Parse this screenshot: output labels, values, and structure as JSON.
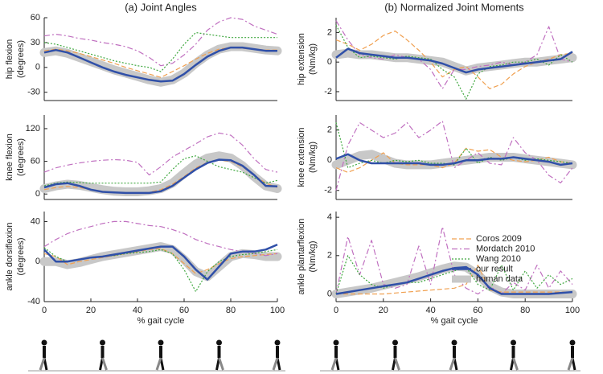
{
  "chart_data": [
    {
      "type": "line",
      "title": "(a) Joint Angles",
      "y_label": "hip flexion",
      "y_unit": "(degrees)",
      "x": [
        0,
        5,
        10,
        15,
        20,
        25,
        30,
        35,
        40,
        45,
        50,
        55,
        60,
        65,
        70,
        75,
        80,
        85,
        90,
        95,
        100
      ],
      "xlim": [
        0,
        100
      ],
      "ylim": [
        -40,
        60
      ],
      "yticks": [
        -30,
        0,
        30,
        60
      ],
      "series": [
        {
          "color": "#f0a050",
          "style": "dashed",
          "values": [
            20,
            22,
            20,
            17,
            13,
            9,
            5,
            0,
            -4,
            -8,
            -12,
            -5,
            2,
            10,
            17,
            22,
            24,
            23,
            22,
            21,
            21
          ]
        },
        {
          "color": "#c070c0",
          "style": "dashdot",
          "values": [
            38,
            40,
            38,
            35,
            33,
            30,
            28,
            25,
            20,
            12,
            2,
            5,
            15,
            28,
            45,
            55,
            60,
            58,
            50,
            45,
            40
          ]
        },
        {
          "color": "#40a840",
          "style": "dotted",
          "values": [
            30,
            28,
            24,
            20,
            16,
            12,
            8,
            5,
            2,
            0,
            -5,
            10,
            28,
            42,
            40,
            38,
            36,
            36,
            36,
            36,
            36
          ]
        },
        {
          "color": "#3050a8",
          "style": "solid",
          "values": [
            18,
            21,
            18,
            12,
            6,
            0,
            -5,
            -9,
            -12,
            -15,
            -17,
            -16,
            -8,
            3,
            13,
            20,
            24,
            24,
            22,
            20,
            20
          ]
        },
        {
          "color": "#c8c8c8",
          "style": "band",
          "values": [
            18,
            20,
            17,
            12,
            7,
            2,
            -3,
            -7,
            -11,
            -15,
            -18,
            -15,
            -7,
            5,
            15,
            22,
            25,
            25,
            23,
            21,
            20
          ]
        }
      ]
    },
    {
      "type": "line",
      "y_label": "knee flexion",
      "y_unit": "(degrees)",
      "x": [
        0,
        5,
        10,
        15,
        20,
        25,
        30,
        35,
        40,
        45,
        50,
        55,
        60,
        65,
        70,
        75,
        80,
        85,
        90,
        95,
        100
      ],
      "xlim": [
        0,
        100
      ],
      "ylim": [
        -10,
        145
      ],
      "yticks": [
        0,
        60,
        120
      ],
      "series": [
        {
          "color": "#f0a050",
          "style": "dashed",
          "values": [
            8,
            12,
            14,
            12,
            8,
            5,
            3,
            2,
            2,
            3,
            8,
            18,
            32,
            48,
            58,
            62,
            60,
            50,
            35,
            20,
            12
          ]
        },
        {
          "color": "#c070c0",
          "style": "dashdot",
          "values": [
            40,
            48,
            53,
            57,
            60,
            62,
            63,
            62,
            58,
            35,
            50,
            68,
            80,
            92,
            105,
            112,
            108,
            90,
            65,
            45,
            40
          ]
        },
        {
          "color": "#40a840",
          "style": "dotted",
          "values": [
            15,
            20,
            22,
            21,
            20,
            20,
            20,
            20,
            20,
            20,
            22,
            45,
            65,
            70,
            60,
            50,
            45,
            40,
            30,
            20,
            25
          ]
        },
        {
          "color": "#3050a8",
          "style": "solid",
          "values": [
            12,
            18,
            20,
            15,
            8,
            4,
            3,
            2,
            2,
            2,
            5,
            15,
            30,
            45,
            57,
            63,
            62,
            52,
            35,
            15,
            14
          ]
        },
        {
          "color": "#c8c8c8",
          "style": "band",
          "values": [
            10,
            15,
            18,
            16,
            12,
            8,
            5,
            4,
            4,
            6,
            10,
            20,
            38,
            55,
            66,
            70,
            66,
            52,
            32,
            15,
            10
          ]
        }
      ]
    },
    {
      "type": "line",
      "y_label": "ankle dorsiflexion",
      "y_unit": "(degrees)",
      "x_label": "% gait cycle",
      "x": [
        0,
        5,
        10,
        15,
        20,
        25,
        30,
        35,
        40,
        45,
        50,
        55,
        60,
        65,
        70,
        75,
        80,
        85,
        90,
        95,
        100
      ],
      "xlim": [
        0,
        100
      ],
      "xticks": [
        0,
        20,
        40,
        60,
        80,
        100
      ],
      "ylim": [
        -40,
        50
      ],
      "yticks": [
        -40,
        0,
        40
      ],
      "series": [
        {
          "color": "#f0a050",
          "style": "dashed",
          "values": [
            8,
            5,
            -3,
            0,
            2,
            4,
            6,
            8,
            10,
            12,
            13,
            8,
            -2,
            -12,
            -8,
            -2,
            3,
            5,
            6,
            7,
            8
          ]
        },
        {
          "color": "#c070c0",
          "style": "dashdot",
          "values": [
            15,
            22,
            28,
            32,
            35,
            38,
            40,
            40,
            38,
            36,
            35,
            32,
            28,
            22,
            18,
            15,
            12,
            10,
            8,
            6,
            8
          ]
        },
        {
          "color": "#40a840",
          "style": "dotted",
          "values": [
            14,
            5,
            0,
            2,
            4,
            5,
            6,
            8,
            9,
            10,
            12,
            8,
            -8,
            -30,
            -10,
            0,
            5,
            7,
            8,
            10,
            12
          ]
        },
        {
          "color": "#3050a8",
          "style": "solid",
          "values": [
            12,
            0,
            0,
            2,
            4,
            5,
            7,
            9,
            11,
            13,
            15,
            15,
            5,
            -8,
            -18,
            -5,
            8,
            10,
            10,
            12,
            17
          ]
        },
        {
          "color": "#c8c8c8",
          "style": "band",
          "values": [
            0,
            0,
            -3,
            -1,
            2,
            5,
            7,
            9,
            11,
            13,
            15,
            12,
            2,
            -10,
            -15,
            -5,
            5,
            8,
            7,
            5,
            5
          ]
        }
      ]
    },
    {
      "type": "line",
      "title": "(b) Normalized Joint Moments",
      "y_label": "hip extension",
      "y_unit": "(Nm/kg)",
      "x": [
        0,
        5,
        10,
        15,
        20,
        25,
        30,
        35,
        40,
        45,
        50,
        55,
        60,
        65,
        70,
        75,
        80,
        85,
        90,
        95,
        100
      ],
      "xlim": [
        0,
        100
      ],
      "ylim": [
        -2.6,
        3
      ],
      "yticks": [
        -2,
        0,
        2
      ],
      "series": [
        {
          "color": "#f0a050",
          "style": "dashed",
          "values": [
            1.5,
            1.2,
            0.8,
            1.2,
            1.8,
            2.1,
            1.5,
            0.8,
            0,
            -1,
            -0.5,
            -0.3,
            -1,
            -1.8,
            -1.5,
            -0.8,
            -0.3,
            0,
            0.2,
            0.5,
            0.6
          ]
        },
        {
          "color": "#c070c0",
          "style": "dashdot",
          "values": [
            2.8,
            1.5,
            0.5,
            0.3,
            0.2,
            0.5,
            0.3,
            0.2,
            -0.5,
            -1.8,
            -0.5,
            -0.5,
            -0.3,
            -0.2,
            0,
            -0.2,
            0,
            0.5,
            2.4,
            0.2,
            0
          ]
        },
        {
          "color": "#40a840",
          "style": "dotted",
          "values": [
            2.5,
            1,
            0.3,
            0.4,
            0.3,
            0.2,
            0.4,
            0.3,
            0.2,
            -0.5,
            -1,
            -2.5,
            -0.8,
            -0.3,
            -0.2,
            0,
            0,
            0.2,
            -0.2,
            0.5,
            0
          ]
        },
        {
          "color": "#3050a8",
          "style": "solid",
          "values": [
            0.3,
            0.9,
            0.6,
            0.5,
            0.4,
            0.3,
            0.3,
            0.2,
            0.1,
            -0.1,
            -0.4,
            -0.7,
            -0.5,
            -0.4,
            -0.3,
            -0.2,
            -0.1,
            0,
            0.1,
            0.2,
            0.7
          ]
        },
        {
          "color": "#c8c8c8",
          "style": "band",
          "values": [
            0.5,
            0.6,
            0.5,
            0.5,
            0.4,
            0.3,
            0.3,
            0.2,
            0.1,
            0,
            -0.3,
            -0.6,
            -0.4,
            -0.3,
            -0.2,
            -0.1,
            0,
            0,
            0.1,
            0.2,
            0.3
          ]
        }
      ]
    },
    {
      "type": "line",
      "y_label": "knee extension",
      "y_unit": "(Nm/kg)",
      "x": [
        0,
        5,
        10,
        15,
        20,
        25,
        30,
        35,
        40,
        45,
        50,
        55,
        60,
        65,
        70,
        75,
        80,
        85,
        90,
        95,
        100
      ],
      "xlim": [
        0,
        100
      ],
      "ylim": [
        -2.6,
        3
      ],
      "yticks": [
        -2,
        0,
        2
      ],
      "series": [
        {
          "color": "#f0a050",
          "style": "dashed",
          "values": [
            -0.5,
            -0.8,
            -0.5,
            0,
            0.5,
            -0.2,
            -0.3,
            -0.3,
            -0.3,
            -0.5,
            -0.2,
            0.8,
            0.6,
            0.7,
            0.2,
            0,
            -0.1,
            0,
            0.2,
            -0.1,
            -0.2
          ]
        },
        {
          "color": "#c070c0",
          "style": "dashdot",
          "values": [
            -2,
            1,
            2.5,
            2,
            1.5,
            1.8,
            2.5,
            1.5,
            2,
            2.6,
            -0.5,
            0,
            0.5,
            -0.2,
            -0.3,
            1.5,
            0.5,
            0,
            -1,
            -1.5,
            -0.5
          ]
        },
        {
          "color": "#40a840",
          "style": "dotted",
          "values": [
            2.5,
            -0.5,
            -0.2,
            0,
            -0.2,
            0,
            -0.1,
            0,
            -0.2,
            -0.2,
            -0.3,
            0.8,
            -0.2,
            0.2,
            0,
            0.2,
            0,
            0.1,
            0,
            -0.1,
            -0.2
          ]
        },
        {
          "color": "#3050a8",
          "style": "solid",
          "values": [
            0.1,
            0.4,
            0,
            -0.2,
            -0.2,
            -0.2,
            -0.2,
            -0.2,
            -0.3,
            -0.3,
            -0.2,
            0,
            0,
            0.1,
            0.1,
            0.2,
            0.1,
            0,
            -0.1,
            -0.3,
            -0.2
          ]
        },
        {
          "color": "#c8c8c8",
          "style": "band",
          "values": [
            -0.3,
            0,
            0.3,
            0.4,
            0.1,
            -0.2,
            -0.3,
            -0.3,
            -0.3,
            -0.2,
            -0.1,
            0,
            0.1,
            0.2,
            0.2,
            0.2,
            0.1,
            0,
            -0.1,
            -0.2,
            -0.3
          ]
        }
      ]
    },
    {
      "type": "line",
      "y_label": "ankle plantarflexion",
      "y_unit": "(Nm/kg)",
      "x_label": "% gait cycle",
      "x": [
        0,
        5,
        10,
        15,
        20,
        25,
        30,
        35,
        40,
        45,
        50,
        55,
        60,
        65,
        70,
        75,
        80,
        85,
        90,
        95,
        100
      ],
      "xlim": [
        0,
        100
      ],
      "xticks": [
        0,
        20,
        40,
        60,
        80,
        100
      ],
      "ylim": [
        -0.4,
        4.3
      ],
      "yticks": [
        0,
        2,
        4
      ],
      "legend": "upper right",
      "series": [
        {
          "name": "Coros 2009",
          "color": "#f0a050",
          "style": "dashed",
          "values": [
            0,
            0,
            0,
            0,
            0,
            0.05,
            0.1,
            0.15,
            0.2,
            0.25,
            0.3,
            0.5,
            1.5,
            0.2,
            0.1,
            0.1,
            0.1,
            0.1,
            0.1,
            0.1,
            0.1
          ]
        },
        {
          "name": "Mordatch 2010",
          "color": "#c070c0",
          "style": "dashdot",
          "values": [
            0,
            3,
            1,
            2.8,
            0.5,
            0.3,
            0.5,
            2.5,
            0.5,
            3.5,
            1,
            0.3,
            0,
            0.4,
            0,
            0.6,
            0.2,
            1.5,
            0.3,
            1.2,
            0.5
          ]
        },
        {
          "name": "Wang 2010",
          "color": "#40a840",
          "style": "dotted",
          "values": [
            0,
            2,
            1,
            0.5,
            0.3,
            0.5,
            0.6,
            0.6,
            0.8,
            1,
            1.2,
            1.4,
            0.5,
            0.2,
            1.5,
            0.2,
            1.2,
            0.3,
            1,
            0.5,
            0.8
          ]
        },
        {
          "name": "our result",
          "color": "#3050a8",
          "style": "solid",
          "values": [
            0,
            0.1,
            0.2,
            0.3,
            0.4,
            0.5,
            0.6,
            0.8,
            1,
            1.2,
            1.35,
            1.4,
            1,
            0.3,
            0,
            0,
            0,
            0,
            0,
            0.05,
            0.1
          ]
        },
        {
          "name": "human data",
          "color": "#c8c8c8",
          "style": "band",
          "values": [
            0,
            0.1,
            0.2,
            0.3,
            0.45,
            0.6,
            0.75,
            0.9,
            1.1,
            1.3,
            1.45,
            1.4,
            1,
            0.4,
            0.1,
            0,
            0,
            0,
            0,
            0,
            0
          ]
        }
      ]
    }
  ]
}
